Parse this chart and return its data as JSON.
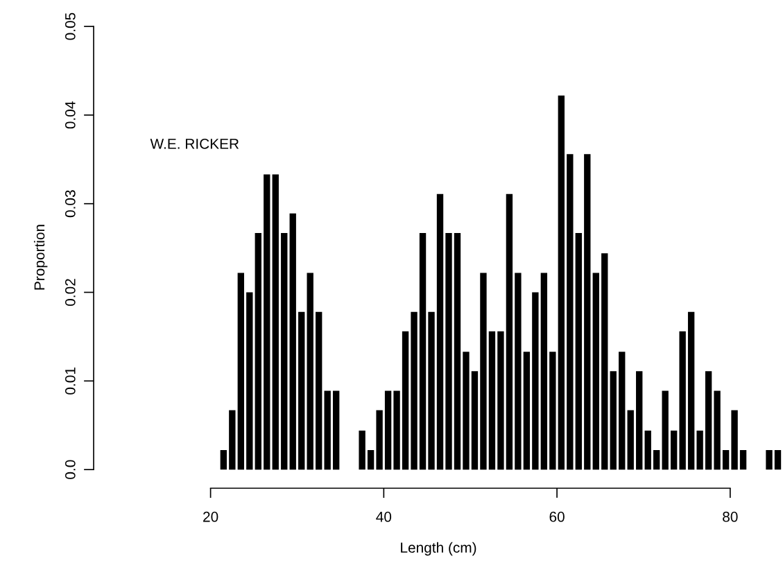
{
  "chart_data": {
    "type": "bar",
    "xlabel": "Length (cm)",
    "ylabel": "Proportion",
    "annotations": [
      "W.E. RICKER"
    ],
    "x": [
      21.5,
      22.5,
      23.5,
      24.5,
      25.5,
      26.5,
      27.5,
      28.5,
      29.5,
      30.5,
      31.5,
      32.5,
      33.5,
      34.5,
      37.5,
      38.5,
      39.5,
      40.5,
      41.5,
      42.5,
      43.5,
      44.5,
      45.5,
      46.5,
      47.5,
      48.5,
      49.5,
      50.5,
      51.5,
      52.5,
      53.5,
      54.5,
      55.5,
      56.5,
      57.5,
      58.5,
      59.5,
      60.5,
      61.5,
      62.5,
      63.5,
      64.5,
      65.5,
      66.5,
      67.5,
      68.5,
      69.5,
      70.5,
      71.5,
      72.5,
      73.5,
      74.5,
      75.5,
      76.5,
      77.5,
      78.5,
      79.5,
      80.5,
      81.5,
      84.5,
      85.5
    ],
    "values": [
      0.0022,
      0.0067,
      0.0222,
      0.02,
      0.0267,
      0.0333,
      0.0333,
      0.0267,
      0.0289,
      0.0178,
      0.0222,
      0.0178,
      0.0089,
      0.0089,
      0.0044,
      0.0022,
      0.0067,
      0.0089,
      0.0089,
      0.0156,
      0.0178,
      0.0267,
      0.0178,
      0.0311,
      0.0267,
      0.0267,
      0.0133,
      0.0111,
      0.0222,
      0.0156,
      0.0156,
      0.0311,
      0.0222,
      0.0133,
      0.02,
      0.0222,
      0.0133,
      0.0422,
      0.0356,
      0.0267,
      0.0356,
      0.0222,
      0.0244,
      0.0111,
      0.0133,
      0.0067,
      0.0111,
      0.0044,
      0.0022,
      0.0089,
      0.0044,
      0.0156,
      0.0178,
      0.0044,
      0.0111,
      0.0089,
      0.0022,
      0.0067,
      0.0022,
      0.0022,
      0.0022
    ],
    "color": "#000000",
    "xlim": [
      6.5,
      86.1
    ],
    "ylim": [
      -0.0021,
      0.05
    ],
    "xticks": [
      20,
      40,
      60,
      80
    ],
    "yticks": [
      {
        "value": 0,
        "label": "0.0"
      },
      0.01,
      0.02,
      0.03,
      0.04,
      0.05
    ],
    "grid": false
  }
}
